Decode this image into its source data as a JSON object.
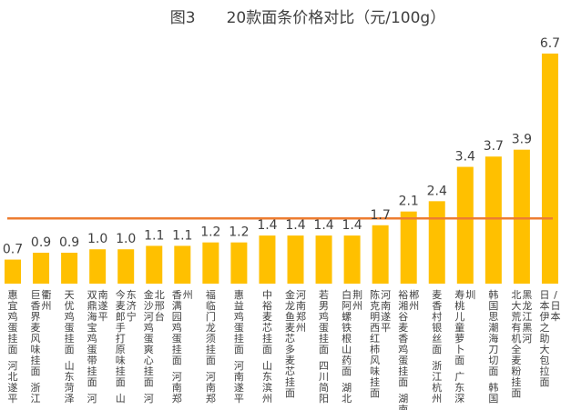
{
  "chart_data": {
    "type": "bar",
    "title": "图3　　20款面条价格对比（元/100g）",
    "bar_color": "#FFC000",
    "avg_line_color": "#ED7D31",
    "label_color": "#404040",
    "ylim": [
      0,
      7.2
    ],
    "average": 1.9,
    "grid": false,
    "legend": "none",
    "categories": [
      "惠宜鸡蛋挂面 河北遂平",
      "衢州",
      "巨香界麦风味挂面 浙江",
      "天优鸡蛋挂面 山东菏泽",
      "南遂平",
      "双鼎海宝鸡蛋带挂面 河",
      "东济宁",
      "今麦郎手打原味挂面 山",
      "北邢台",
      "金沙河鸡蛋爽心挂面 河",
      "州",
      "香满园鸡蛋挂面 河南郑",
      "福临门龙须挂面 河南郑",
      "惠益鸡蛋挂面 河南遂平",
      "中裕麦芯挂面 山东滨州",
      "河南郑州",
      "金龙鱼麦芯多麦芯挂面",
      "若男鸡蛋挂面 四川简阳",
      "荆州",
      "白阿螺铁根山药面 湖北",
      "河南遂平",
      "陈克明西红柿风味挂面",
      "郴州",
      "裕湘谷麦香鸡蛋挂面 湖南",
      "麦香村银丝面 浙江杭州",
      "圳",
      "寿桃儿童萝卜面 广东深",
      "韩国思潮海刀切面 韩国",
      "黑龙江黑河",
      "北大荒有机全麦粉挂面",
      "/日本",
      "日本伊之助大包拉面"
    ],
    "bars": [
      {
        "labels": [
          "惠宜鸡蛋挂面 河北遂平"
        ],
        "value": 0.7
      },
      {
        "labels": [
          "衢州",
          "巨香界麦风味挂面 浙江"
        ],
        "value": 0.9
      },
      {
        "labels": [
          "天优鸡蛋挂面 山东菏泽"
        ],
        "value": 0.9
      },
      {
        "labels": [
          "南遂平",
          "双鼎海宝鸡蛋带挂面 河"
        ],
        "value": 1.0
      },
      {
        "labels": [
          "东济宁",
          "今麦郎手打原味挂面 山"
        ],
        "value": 1.0
      },
      {
        "labels": [
          "北邢台",
          "金沙河鸡蛋爽心挂面 河"
        ],
        "value": 1.1
      },
      {
        "labels": [
          "州",
          "香满园鸡蛋挂面 河南郑"
        ],
        "value": 1.1
      },
      {
        "labels": [
          "福临门龙须挂面 河南郑"
        ],
        "value": 1.2
      },
      {
        "labels": [
          "惠益鸡蛋挂面 河南遂平"
        ],
        "value": 1.2
      },
      {
        "labels": [
          "中裕麦芯挂面 山东滨州"
        ],
        "value": 1.4
      },
      {
        "labels": [
          "河南郑州",
          "金龙鱼麦芯多麦芯挂面"
        ],
        "value": 1.4
      },
      {
        "labels": [
          "若男鸡蛋挂面 四川简阳"
        ],
        "value": 1.4
      },
      {
        "labels": [
          "荆州",
          "白阿螺铁根山药面 湖北"
        ],
        "value": 1.4
      },
      {
        "labels": [
          "河南遂平",
          "陈克明西红柿风味挂面"
        ],
        "value": 1.7
      },
      {
        "labels": [
          "郴州",
          "裕湘谷麦香鸡蛋挂面 湖南"
        ],
        "value": 2.1
      },
      {
        "labels": [
          "麦香村银丝面 浙江杭州"
        ],
        "value": 2.4
      },
      {
        "labels": [
          "圳",
          "寿桃儿童萝卜面 广东深"
        ],
        "value": 3.4
      },
      {
        "labels": [
          "韩国思潮海刀切面 韩国"
        ],
        "value": 3.7
      },
      {
        "labels": [
          "黑龙江黑河",
          "北大荒有机全麦粉挂面"
        ],
        "value": 3.9
      },
      {
        "labels": [
          "/日本",
          "日本伊之助大包拉面"
        ],
        "value": 6.7
      }
    ],
    "value_labels": [
      "0.7",
      "0.9",
      "0.9",
      "1.0",
      "1.0",
      "1.1",
      "1.1",
      "1.2",
      "1.2",
      "1.4",
      "1.4",
      "1.4",
      "1.4",
      "1.7",
      "2.1",
      "2.4",
      "3.4",
      "3.7",
      "3.9",
      "6.7"
    ]
  }
}
